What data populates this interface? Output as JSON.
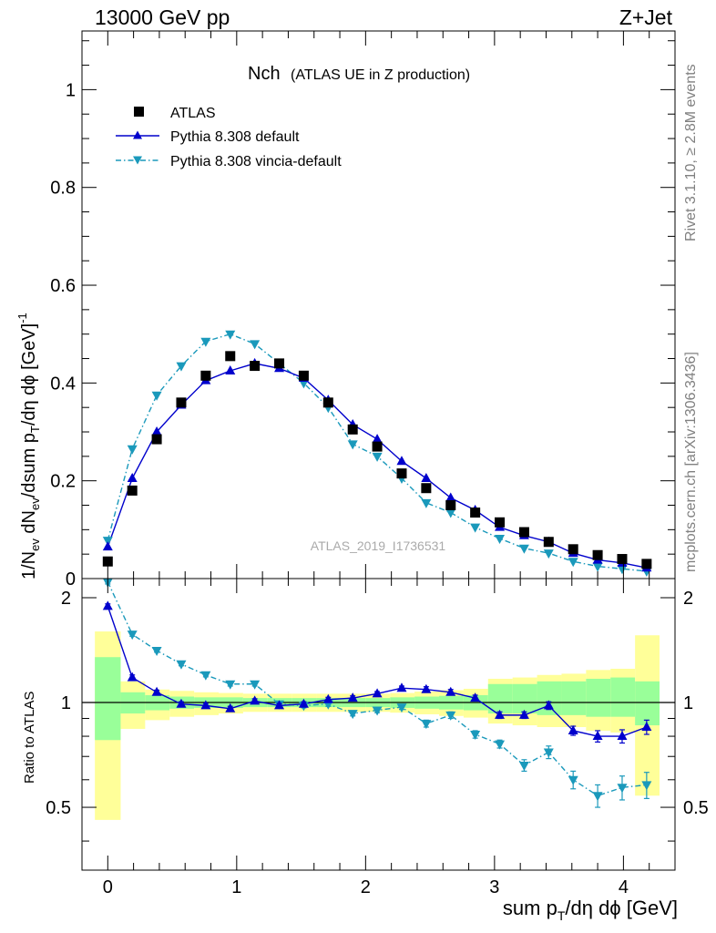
{
  "header": {
    "left": "13000 GeV pp",
    "right": "Z+Jet"
  },
  "side_text": {
    "rivet": "Rivet 3.1.10, ≥ 2.8M events",
    "mcplots": "mcplots.cern.ch [arXiv:1306.3436]"
  },
  "colors": {
    "atlas": "#000000",
    "default": "#0000cc",
    "vincia": "#1a99bb",
    "band_inner": "#99ff99",
    "band_outer": "#ffff99"
  },
  "chart_data": [
    {
      "type": "scatter",
      "title_main": "Nch",
      "title_sub": "(ATLAS UE in Z production)",
      "watermark": "ATLAS_2019_I1736531",
      "ylabel": "1/N_ev dN_ev/dsum p_T/dη dϕ [GeV]^-1",
      "xlim": [
        -0.2,
        4.4
      ],
      "ylim": [
        0,
        1.12
      ],
      "yticks": [
        0,
        0.2,
        0.4,
        0.6,
        0.8,
        1
      ],
      "ytick_labels": [
        "0",
        "0.2",
        "0.4",
        "0.6",
        "0.8",
        "1"
      ],
      "legend_position": "top-left",
      "x": [
        0.0,
        0.19,
        0.38,
        0.57,
        0.76,
        0.95,
        1.14,
        1.33,
        1.52,
        1.71,
        1.9,
        2.09,
        2.28,
        2.47,
        2.66,
        2.85,
        3.04,
        3.23,
        3.42,
        3.61,
        3.8,
        3.99,
        4.18
      ],
      "series": [
        {
          "name": "ATLAS",
          "marker": "square",
          "values": [
            0.035,
            0.18,
            0.285,
            0.36,
            0.415,
            0.455,
            0.435,
            0.44,
            0.415,
            0.36,
            0.305,
            0.27,
            0.215,
            0.185,
            0.15,
            0.135,
            0.115,
            0.095,
            0.075,
            0.06,
            0.048,
            0.04,
            0.03
          ]
        },
        {
          "name": "Pythia 8.308 default",
          "marker": "triangle-up",
          "values": [
            0.065,
            0.205,
            0.3,
            0.355,
            0.405,
            0.425,
            0.44,
            0.43,
            0.41,
            0.365,
            0.315,
            0.285,
            0.24,
            0.205,
            0.165,
            0.14,
            0.105,
            0.088,
            0.075,
            0.052,
            0.038,
            0.032,
            0.022
          ]
        },
        {
          "name": "Pythia 8.308 vincia-default",
          "marker": "triangle-down",
          "values": [
            0.078,
            0.265,
            0.375,
            0.435,
            0.485,
            0.5,
            0.48,
            0.44,
            0.4,
            0.35,
            0.275,
            0.25,
            0.205,
            0.155,
            0.135,
            0.105,
            0.082,
            0.062,
            0.052,
            0.035,
            0.025,
            0.02,
            0.015
          ]
        }
      ]
    },
    {
      "type": "line",
      "ylabel": "Ratio to ATLAS",
      "xlabel": "sum p_T/dη dϕ [GeV]",
      "xlim": [
        -0.2,
        4.4
      ],
      "ylim": [
        0.33,
        2.27
      ],
      "xticks": [
        0,
        1,
        2,
        3,
        4
      ],
      "xtick_labels": [
        "0",
        "1",
        "2",
        "3",
        "4"
      ],
      "yticks": [
        0.5,
        1,
        2
      ],
      "ytick_labels": [
        "0.5",
        "1",
        "2"
      ],
      "bin_edges": [
        -0.1,
        0.1,
        0.29,
        0.48,
        0.67,
        0.86,
        1.05,
        1.24,
        1.43,
        1.62,
        1.81,
        2.0,
        2.19,
        2.38,
        2.57,
        2.76,
        2.95,
        3.14,
        3.33,
        3.52,
        3.71,
        3.9,
        4.09,
        4.28
      ],
      "band_inner": {
        "low": [
          0.78,
          0.93,
          0.95,
          0.96,
          0.965,
          0.965,
          0.97,
          0.97,
          0.97,
          0.97,
          0.97,
          0.97,
          0.965,
          0.96,
          0.955,
          0.95,
          0.93,
          0.93,
          0.92,
          0.92,
          0.91,
          0.91,
          0.86
        ],
        "high": [
          1.35,
          1.07,
          1.05,
          1.04,
          1.035,
          1.035,
          1.03,
          1.03,
          1.03,
          1.03,
          1.03,
          1.03,
          1.035,
          1.04,
          1.045,
          1.05,
          1.13,
          1.13,
          1.15,
          1.15,
          1.17,
          1.18,
          1.15
        ]
      },
      "band_outer": {
        "low": [
          0.46,
          0.84,
          0.89,
          0.91,
          0.92,
          0.93,
          0.94,
          0.94,
          0.94,
          0.94,
          0.94,
          0.94,
          0.935,
          0.925,
          0.915,
          0.905,
          0.87,
          0.86,
          0.85,
          0.85,
          0.83,
          0.82,
          0.54
        ],
        "high": [
          1.6,
          1.15,
          1.09,
          1.08,
          1.07,
          1.065,
          1.06,
          1.06,
          1.06,
          1.06,
          1.06,
          1.06,
          1.065,
          1.075,
          1.085,
          1.095,
          1.17,
          1.18,
          1.2,
          1.21,
          1.24,
          1.25,
          1.56
        ]
      },
      "series": [
        {
          "name": "Pythia 8.308 default",
          "marker": "triangle-up",
          "values": [
            1.89,
            1.18,
            1.07,
            0.99,
            0.98,
            0.96,
            1.01,
            0.98,
            0.99,
            1.02,
            1.03,
            1.06,
            1.1,
            1.09,
            1.07,
            1.03,
            0.92,
            0.92,
            0.98,
            0.83,
            0.8,
            0.8,
            0.85
          ],
          "err": [
            0.03,
            0.02,
            0.015,
            0.015,
            0.015,
            0.015,
            0.015,
            0.015,
            0.015,
            0.015,
            0.015,
            0.015,
            0.015,
            0.02,
            0.02,
            0.02,
            0.02,
            0.02,
            0.025,
            0.025,
            0.03,
            0.035,
            0.04
          ]
        },
        {
          "name": "Pythia 8.308 vincia-default",
          "marker": "triangle-down",
          "values": [
            2.22,
            1.57,
            1.41,
            1.29,
            1.2,
            1.13,
            1.13,
            0.99,
            0.98,
            0.99,
            0.93,
            0.95,
            0.97,
            0.87,
            0.92,
            0.81,
            0.76,
            0.66,
            0.72,
            0.6,
            0.54,
            0.57,
            0.58
          ],
          "err": [
            0.03,
            0.02,
            0.015,
            0.015,
            0.015,
            0.015,
            0.015,
            0.015,
            0.015,
            0.015,
            0.015,
            0.015,
            0.015,
            0.02,
            0.02,
            0.02,
            0.02,
            0.025,
            0.03,
            0.035,
            0.04,
            0.045,
            0.05
          ]
        }
      ]
    }
  ]
}
